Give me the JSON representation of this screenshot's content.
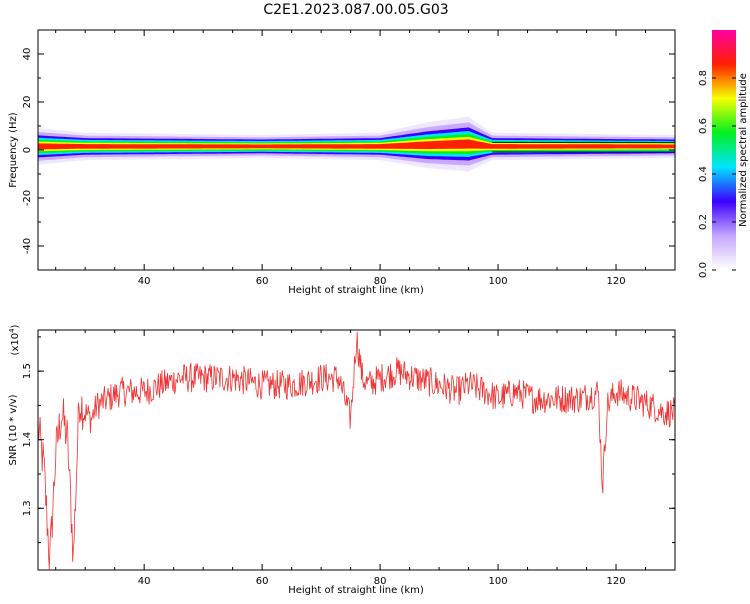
{
  "figure": {
    "title": "C2E1.2023.087.00.05.G03"
  },
  "chart_data": [
    {
      "type": "heatmap",
      "title": "C2E1.2023.087.00.05.G03",
      "xlabel": "Height of straight line (km)",
      "ylabel": "Frequency (Hz)",
      "xlim": [
        22,
        130
      ],
      "ylim": [
        -50,
        50
      ],
      "x_ticks": [
        40,
        60,
        80,
        100,
        120
      ],
      "y_ticks": [
        -40,
        -20,
        0,
        20,
        40
      ],
      "x_tick_labels": [
        "40",
        "60",
        "80",
        "100",
        "120"
      ],
      "y_tick_labels": [
        "-40",
        "-20",
        "0",
        "20",
        "40"
      ],
      "colorbar": {
        "label": "Normalized spectral amplitude",
        "range": [
          0,
          1
        ],
        "ticks": [
          0.0,
          0.2,
          0.4,
          0.6,
          0.8
        ],
        "tick_labels": [
          "0.0",
          "0.2",
          "0.4",
          "0.6",
          "0.8"
        ],
        "colormap": "rainbow-magenta",
        "stops": [
          "#ffffff",
          "#c4a6ff",
          "#3c00ff",
          "#00e4ff",
          "#00f020",
          "#f6ff00",
          "#ff2000",
          "#ff00a0"
        ]
      },
      "band": {
        "description_values": [
          {
            "x": 22,
            "center": 1.5,
            "halfwidth": 4
          },
          {
            "x": 30,
            "center": 1.5,
            "halfwidth": 3
          },
          {
            "x": 60,
            "center": 1.5,
            "halfwidth": 2.5
          },
          {
            "x": 80,
            "center": 1.5,
            "halfwidth": 3
          },
          {
            "x": 88,
            "center": 2.0,
            "halfwidth": 5
          },
          {
            "x": 95,
            "center": 2.5,
            "halfwidth": 6
          },
          {
            "x": 99,
            "center": 1.5,
            "halfwidth": 3
          },
          {
            "x": 130,
            "center": 1.5,
            "halfwidth": 2.5
          }
        ]
      },
      "grid": false
    },
    {
      "type": "line",
      "xlabel": "Height of straight line (km)",
      "ylabel": "SNR (10 * v/v)",
      "y_multiplier_label": "(x10",
      "y_multiplier_exponent": "4",
      "y_multiplier_close": ")",
      "xlim": [
        22,
        130
      ],
      "ylim": [
        1.21,
        1.56
      ],
      "x_ticks": [
        40,
        60,
        80,
        100,
        120
      ],
      "y_ticks": [
        1.3,
        1.4,
        1.5
      ],
      "x_tick_labels": [
        "40",
        "60",
        "80",
        "100",
        "120"
      ],
      "y_tick_labels": [
        "1.3",
        "1.4",
        "1.5"
      ],
      "series": [
        {
          "color": "#ee3333",
          "x": [
            22,
            23,
            24,
            25,
            26,
            27,
            28,
            29,
            30,
            31,
            32,
            34,
            36,
            38,
            40,
            43,
            46,
            50,
            55,
            60,
            65,
            70,
            73,
            75,
            76,
            77,
            78,
            80,
            83,
            86,
            90,
            93,
            95,
            98,
            100,
            103,
            106,
            110,
            114,
            117,
            117.7,
            118.5,
            120,
            123,
            126,
            128,
            130
          ],
          "y": [
            1.42,
            1.36,
            1.22,
            1.38,
            1.44,
            1.4,
            1.23,
            1.46,
            1.44,
            1.43,
            1.45,
            1.46,
            1.47,
            1.47,
            1.47,
            1.48,
            1.49,
            1.49,
            1.49,
            1.48,
            1.48,
            1.49,
            1.49,
            1.43,
            1.55,
            1.49,
            1.48,
            1.49,
            1.5,
            1.49,
            1.48,
            1.47,
            1.48,
            1.47,
            1.46,
            1.47,
            1.46,
            1.46,
            1.46,
            1.47,
            1.33,
            1.45,
            1.47,
            1.46,
            1.45,
            1.44,
            1.44
          ]
        }
      ],
      "grid": false
    }
  ]
}
